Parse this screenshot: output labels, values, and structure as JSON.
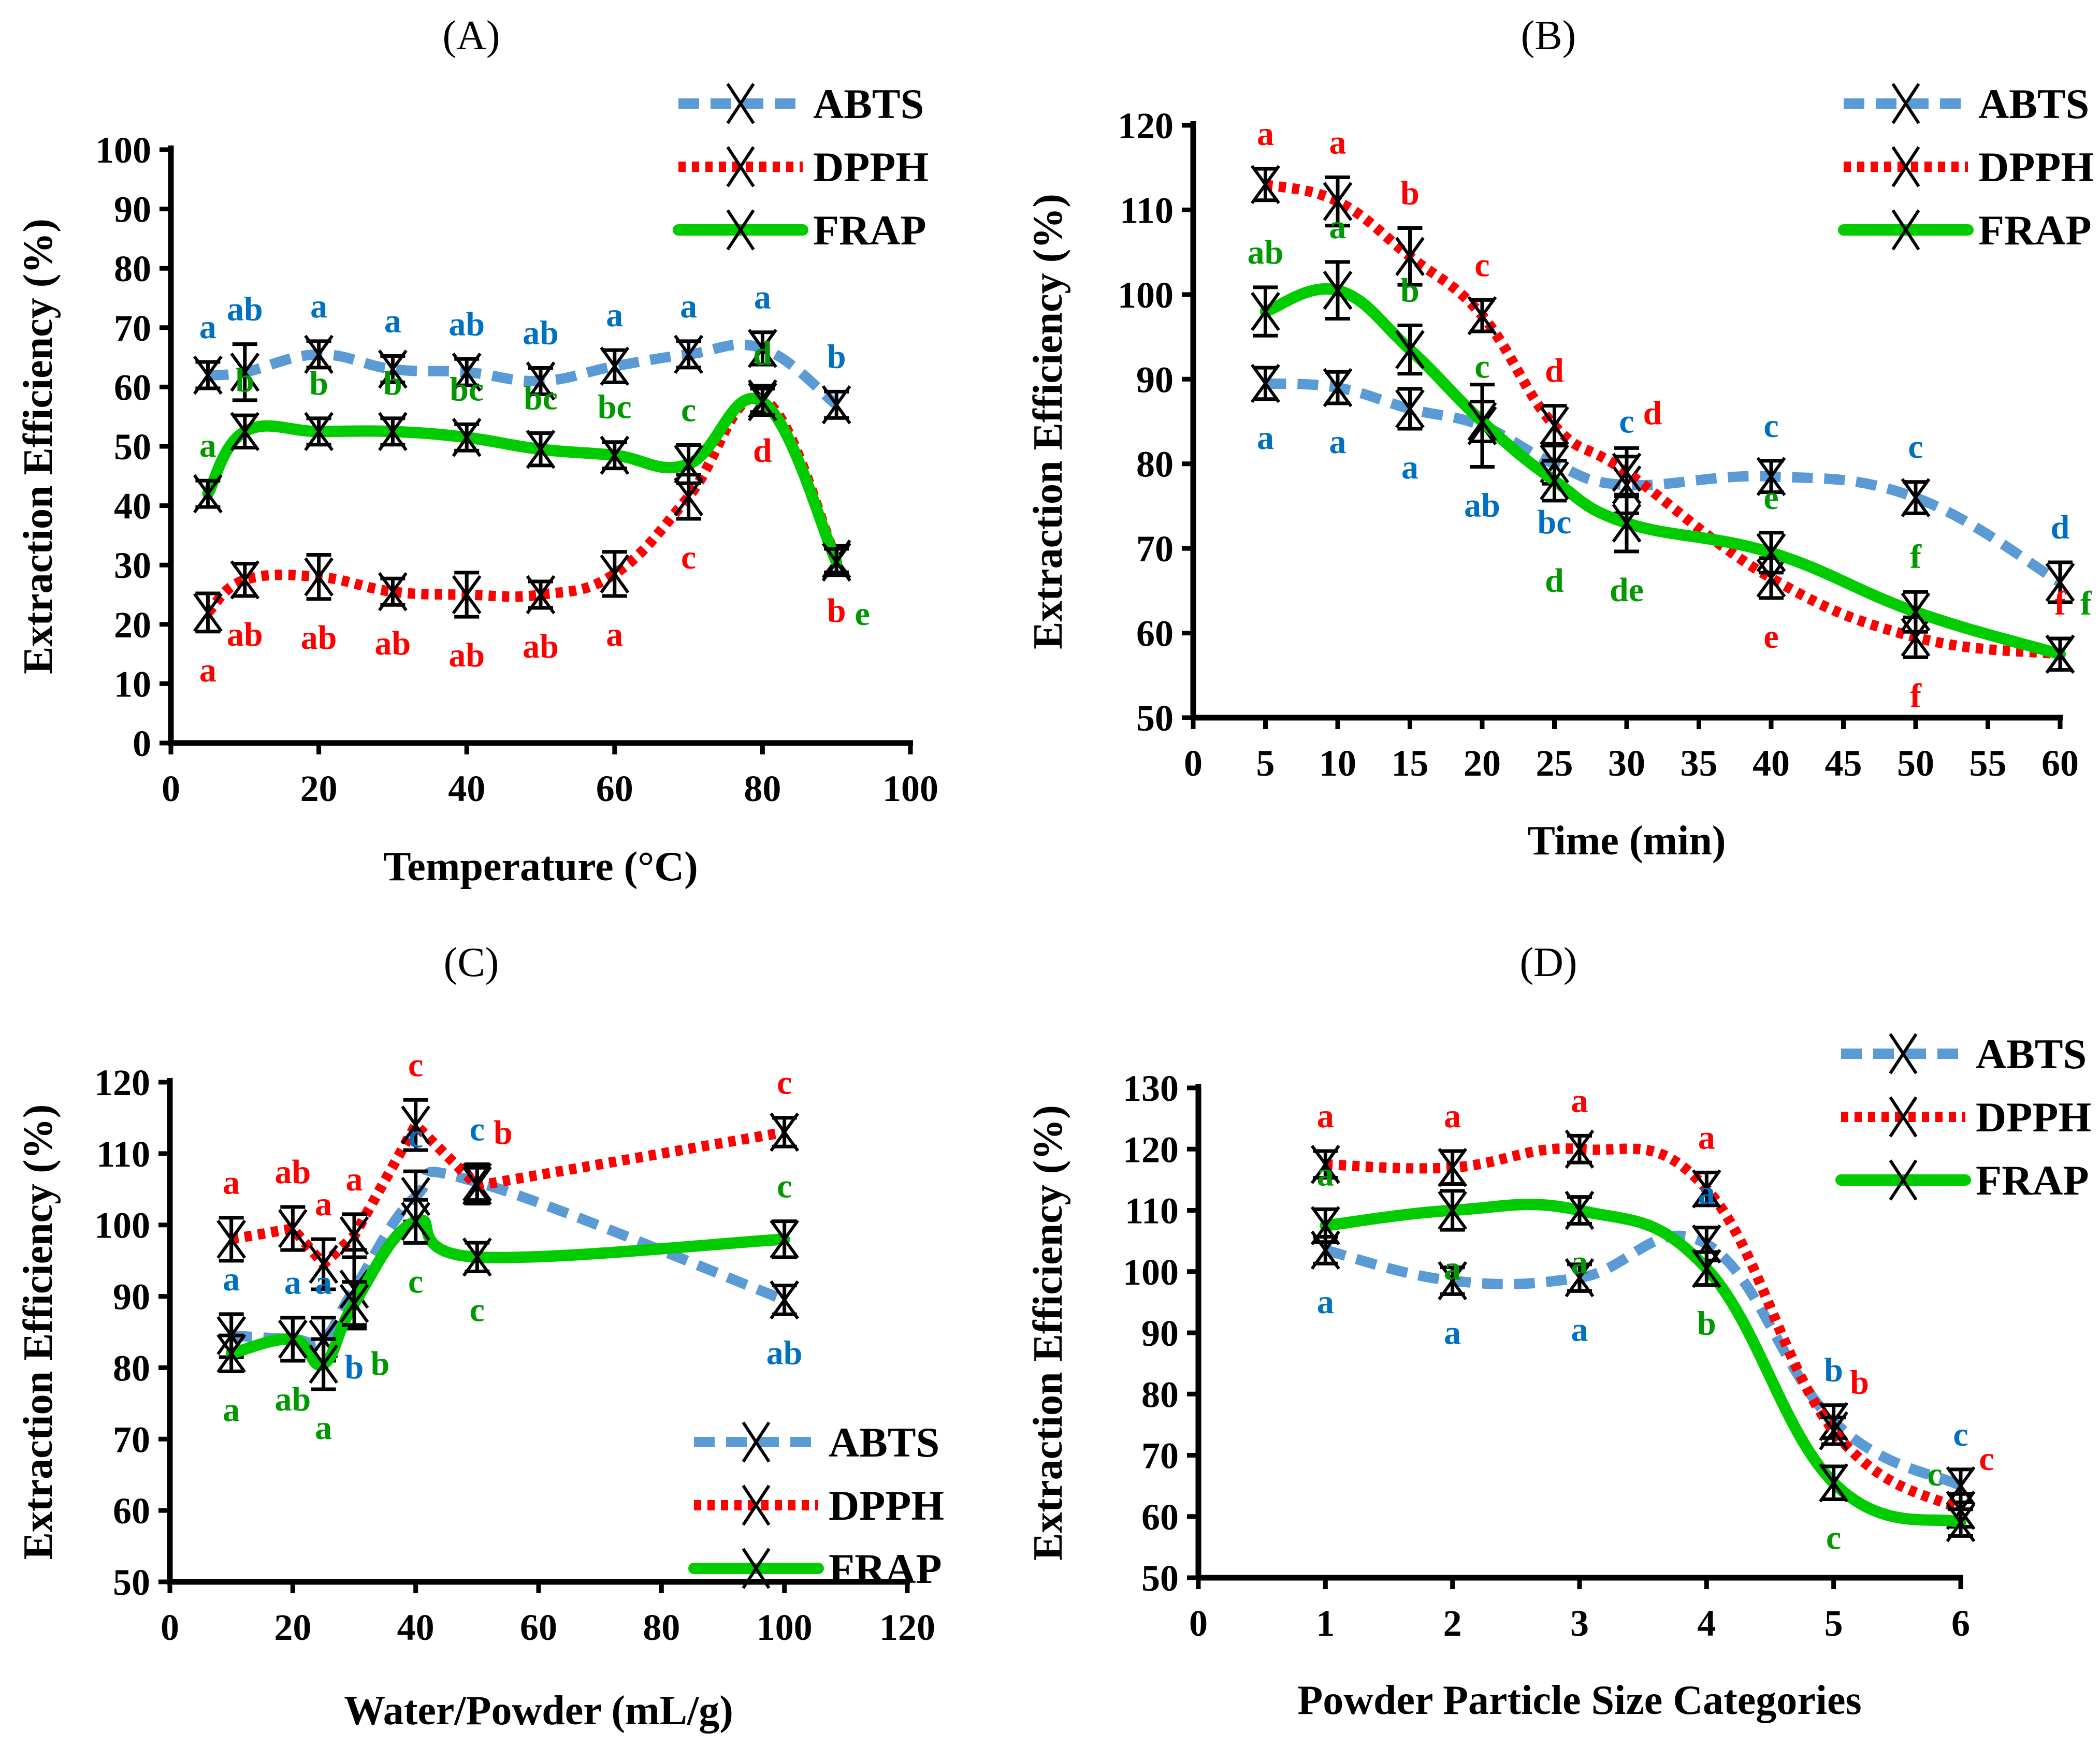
{
  "colors": {
    "ABTS": "#5B9BD5",
    "DPPH": "#FF0000",
    "FRAP": "#00CC00",
    "ABTS_letters": "#0070C0",
    "DPPH_letters": "#FF0000",
    "FRAP_letters": "#009900",
    "markers": "#000000"
  },
  "chart_data": [
    {
      "panel": "(A)",
      "type": "line",
      "xlabel": "Temperature (°C)",
      "ylabel": "Extraction Efficiency (%)",
      "xlim": [
        0,
        100
      ],
      "xticks": [
        0,
        20,
        40,
        60,
        80,
        100
      ],
      "ylim": [
        0,
        100
      ],
      "yticks": [
        0,
        10,
        20,
        30,
        40,
        50,
        60,
        70,
        80,
        90,
        100
      ],
      "legend": "top-right",
      "grid": false,
      "x": [
        5,
        10,
        20,
        30,
        40,
        50,
        60,
        70,
        80,
        90
      ],
      "series": [
        {
          "name": "ABTS",
          "values": [
            62,
            62.5,
            65.5,
            63,
            62.5,
            61,
            63.5,
            65.5,
            66.5,
            57
          ],
          "err": [
            1,
            3.5,
            1,
            1,
            1,
            1,
            1.5,
            1,
            1.5,
            1
          ],
          "letters": [
            "a",
            "ab",
            "a",
            "a",
            "ab",
            "ab",
            "a",
            "a",
            "a",
            "b"
          ]
        },
        {
          "name": "DPPH",
          "values": [
            22,
            27.5,
            28,
            25.5,
            25,
            25,
            28.5,
            41.5,
            58,
            31
          ],
          "err": [
            2,
            1.5,
            2.5,
            1,
            2.5,
            1,
            2.5,
            2.5,
            1,
            1
          ],
          "letters": [
            "a",
            "ab",
            "ab",
            "ab",
            "ab",
            "ab",
            "a",
            "c",
            "d",
            "b"
          ]
        },
        {
          "name": "FRAP",
          "values": [
            42,
            52.5,
            52.5,
            52.5,
            51.5,
            49.5,
            48.5,
            47,
            57.5,
            30.5
          ],
          "err": [
            1,
            1.5,
            1,
            1,
            1,
            1.5,
            1,
            2,
            1,
            1
          ],
          "letters": [
            "a",
            "b",
            "b",
            "b",
            "bc",
            "bc",
            "bc",
            "c",
            "d",
            "e"
          ]
        }
      ]
    },
    {
      "panel": "(B)",
      "type": "line",
      "xlabel": "Time (min)",
      "ylabel": "Extraction Efficiency (%)",
      "xlim": [
        0,
        60
      ],
      "xticks": [
        0,
        5,
        10,
        15,
        20,
        25,
        30,
        35,
        40,
        45,
        50,
        55,
        60
      ],
      "ylim": [
        50,
        120
      ],
      "yticks": [
        50,
        60,
        70,
        80,
        90,
        100,
        110,
        120
      ],
      "legend": "top-right",
      "grid": false,
      "x": [
        5,
        10,
        15,
        20,
        25,
        30,
        40,
        50,
        60
      ],
      "series": [
        {
          "name": "ABTS",
          "values": [
            89.5,
            89,
            86.5,
            84.5,
            80,
            77.5,
            78.5,
            76,
            66
          ],
          "err": [
            1,
            1,
            1.5,
            4,
            1.5,
            2.5,
            1,
            1,
            1.5
          ],
          "letters": [
            "a",
            "a",
            "a",
            "ab",
            "bc",
            "c",
            "c",
            "c",
            "d"
          ]
        },
        {
          "name": "DPPH",
          "values": [
            113,
            111,
            104.5,
            97.5,
            84.5,
            79,
            66.5,
            59.5,
            57.5
          ],
          "err": [
            1,
            2,
            2.5,
            1,
            1.5,
            2,
            1.5,
            1.5,
            1
          ],
          "letters": [
            "a",
            "a",
            "b",
            "c",
            "d",
            "d",
            "e",
            "f",
            "f"
          ]
        },
        {
          "name": "FRAP",
          "values": [
            98,
            100.5,
            93.5,
            85,
            78,
            73,
            69.5,
            62.5,
            57.5
          ],
          "err": [
            2,
            2.5,
            2,
            1.5,
            1.5,
            2.5,
            1.5,
            1.5,
            1
          ],
          "letters": [
            "ab",
            "a",
            "b",
            "c",
            "d",
            "de",
            "e",
            "f",
            "f"
          ]
        }
      ]
    },
    {
      "panel": "(C)",
      "type": "line",
      "xlabel": "Water/Powder (mL/g)",
      "ylabel": "Extraction Efficiency (%)",
      "xlim": [
        0,
        120
      ],
      "xticks": [
        0,
        20,
        40,
        60,
        80,
        100,
        120
      ],
      "ylim": [
        50,
        120
      ],
      "yticks": [
        50,
        60,
        70,
        80,
        90,
        100,
        110,
        120
      ],
      "legend": "bottom-right",
      "grid": false,
      "x": [
        10,
        20,
        25,
        30,
        40,
        50,
        100
      ],
      "series": [
        {
          "name": "ABTS",
          "values": [
            84.5,
            84,
            84,
            91,
            104,
            106,
            89.5
          ],
          "err": [
            2,
            2,
            2,
            4.5,
            2.5,
            1.5,
            1
          ],
          "letters": [
            "a",
            "a",
            "a",
            "b",
            "c",
            "c",
            "ab"
          ]
        },
        {
          "name": "DPPH",
          "values": [
            98,
            99.5,
            94.5,
            98.5,
            114,
            105.5,
            113
          ],
          "err": [
            2,
            2,
            2.5,
            2,
            2.5,
            1.5,
            1
          ],
          "letters": [
            "a",
            "ab",
            "a",
            "a",
            "c",
            "b",
            "c"
          ]
        },
        {
          "name": "FRAP",
          "values": [
            82,
            84,
            80.5,
            89,
            100.5,
            95.5,
            98
          ],
          "err": [
            1.5,
            2,
            2.5,
            2,
            2,
            1,
            1.5
          ],
          "letters": [
            "a",
            "ab",
            "a",
            "b",
            "c",
            "c",
            "c"
          ]
        }
      ]
    },
    {
      "panel": "(D)",
      "type": "line",
      "xlabel": "Powder Particle Size Categories",
      "ylabel": "Extraction Efficiency (%)",
      "xlim": [
        0,
        6
      ],
      "xticks": [
        0,
        1,
        2,
        3,
        4,
        5,
        6
      ],
      "ylim": [
        50,
        130
      ],
      "yticks": [
        50,
        60,
        70,
        80,
        90,
        100,
        110,
        120,
        130
      ],
      "legend": "top-right",
      "grid": false,
      "x": [
        1,
        2,
        3,
        4,
        5,
        6
      ],
      "series": [
        {
          "name": "ABTS",
          "values": [
            103.5,
            98.5,
            99,
            104.5,
            75.5,
            65
          ],
          "err": [
            1,
            1,
            1,
            1.5,
            1.5,
            1.5
          ],
          "letters": [
            "a",
            "a",
            "a",
            "a",
            "b",
            "c"
          ]
        },
        {
          "name": "DPPH",
          "values": [
            117.5,
            117,
            120,
            113.5,
            74,
            61
          ],
          "err": [
            1,
            1.5,
            1,
            1.5,
            1,
            1.5
          ],
          "letters": [
            "a",
            "a",
            "a",
            "a",
            "b",
            "c"
          ]
        },
        {
          "name": "FRAP",
          "values": [
            107.5,
            110,
            110,
            100.5,
            65.5,
            59
          ],
          "err": [
            1.5,
            2,
            1,
            1.5,
            1.5,
            1
          ],
          "letters": [
            "a",
            "a",
            "a",
            "b",
            "c",
            "c"
          ]
        }
      ]
    }
  ]
}
